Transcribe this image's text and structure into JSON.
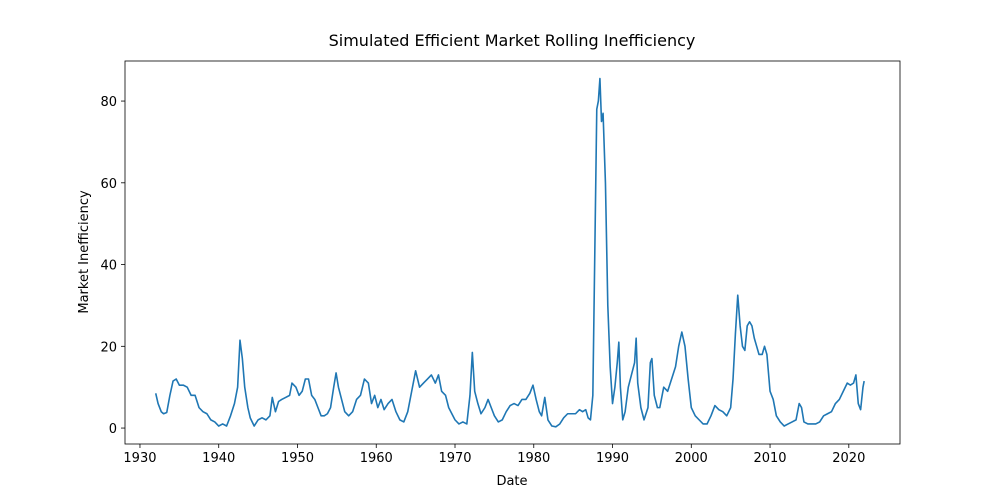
{
  "chart_data": {
    "type": "line",
    "title": "Simulated Efficient Market Rolling Inefficiency",
    "x_label": "Date",
    "y_label": "Market Inefficiency",
    "color": "#1f77b4",
    "x": [
      1932.0,
      1932.3,
      1932.7,
      1933.0,
      1933.4,
      1933.8,
      1934.2,
      1934.6,
      1935.0,
      1935.5,
      1936.0,
      1936.5,
      1937.0,
      1937.5,
      1938.0,
      1938.5,
      1939.0,
      1939.5,
      1940.0,
      1940.5,
      1941.0,
      1941.5,
      1942.0,
      1942.4,
      1942.7,
      1943.0,
      1943.3,
      1943.7,
      1944.0,
      1944.5,
      1945.0,
      1945.5,
      1946.0,
      1946.5,
      1946.8,
      1947.2,
      1947.6,
      1948.0,
      1948.5,
      1949.0,
      1949.3,
      1949.8,
      1950.2,
      1950.6,
      1951.0,
      1951.4,
      1951.8,
      1952.2,
      1952.6,
      1953.0,
      1953.4,
      1953.8,
      1954.2,
      1954.6,
      1954.9,
      1955.2,
      1955.6,
      1956.0,
      1956.5,
      1957.0,
      1957.5,
      1958.0,
      1958.5,
      1959.0,
      1959.4,
      1959.8,
      1960.2,
      1960.6,
      1961.0,
      1961.5,
      1962.0,
      1962.5,
      1963.0,
      1963.5,
      1964.0,
      1964.5,
      1965.0,
      1965.5,
      1966.0,
      1966.5,
      1967.0,
      1967.5,
      1967.9,
      1968.3,
      1968.8,
      1969.2,
      1969.6,
      1970.0,
      1970.5,
      1971.0,
      1971.5,
      1971.9,
      1972.2,
      1972.5,
      1972.9,
      1973.3,
      1973.8,
      1974.2,
      1974.6,
      1975.0,
      1975.5,
      1976.0,
      1976.5,
      1977.0,
      1977.5,
      1978.0,
      1978.5,
      1979.0,
      1979.5,
      1979.9,
      1980.3,
      1980.7,
      1981.0,
      1981.4,
      1981.8,
      1982.3,
      1982.8,
      1983.3,
      1983.8,
      1984.3,
      1984.8,
      1985.3,
      1985.8,
      1986.2,
      1986.6,
      1986.9,
      1987.2,
      1987.5,
      1987.8,
      1988.0,
      1988.2,
      1988.4,
      1988.6,
      1988.8,
      1989.1,
      1989.4,
      1989.7,
      1990.0,
      1990.3,
      1990.6,
      1990.8,
      1991.0,
      1991.3,
      1991.6,
      1992.0,
      1992.4,
      1992.8,
      1993.0,
      1993.2,
      1993.6,
      1994.0,
      1994.5,
      1994.8,
      1995.0,
      1995.3,
      1995.7,
      1996.0,
      1996.5,
      1997.0,
      1997.5,
      1998.0,
      1998.4,
      1998.8,
      1999.2,
      1999.6,
      2000.0,
      2000.5,
      2001.0,
      2001.5,
      2002.0,
      2002.5,
      2003.0,
      2003.5,
      2004.0,
      2004.5,
      2005.0,
      2005.3,
      2005.6,
      2005.9,
      2006.2,
      2006.5,
      2006.8,
      2007.1,
      2007.4,
      2007.7,
      2008.0,
      2008.3,
      2008.6,
      2009.0,
      2009.3,
      2009.6,
      2010.0,
      2010.4,
      2010.8,
      2011.3,
      2011.8,
      2012.3,
      2012.8,
      2013.3,
      2013.7,
      2014.0,
      2014.3,
      2014.8,
      2015.3,
      2015.8,
      2016.3,
      2016.8,
      2017.3,
      2017.8,
      2018.3,
      2018.8,
      2019.3,
      2019.8,
      2020.2,
      2020.6,
      2020.9,
      2021.2,
      2021.5,
      2021.8,
      2021.95
    ],
    "values": [
      8.5,
      6,
      4,
      3.5,
      3.8,
      8,
      11.5,
      12,
      10.5,
      10.5,
      10,
      8,
      8,
      5,
      4,
      3.5,
      2,
      1.5,
      0.5,
      1,
      0.5,
      3,
      6,
      10,
      21.5,
      17,
      10,
      5,
      2.5,
      0.5,
      2,
      2.5,
      2,
      3,
      7.5,
      4,
      6.5,
      7,
      7.5,
      8,
      11,
      10,
      8,
      9,
      12,
      12,
      8,
      7,
      5,
      3,
      3,
      3.5,
      5,
      10,
      13.5,
      10,
      7,
      4,
      3,
      4,
      7,
      8,
      12,
      11,
      6,
      8,
      5,
      7,
      4.5,
      6,
      7,
      4,
      2,
      1.5,
      4,
      9,
      14,
      10,
      11,
      12,
      13,
      11,
      13,
      9,
      8,
      5,
      3.5,
      2,
      1,
      1.5,
      1,
      8,
      18.5,
      9,
      6,
      3.5,
      5,
      7,
      5,
      3,
      1.5,
      2,
      4,
      5.5,
      6,
      5.5,
      7,
      7,
      8.5,
      10.5,
      7,
      4,
      3,
      7.5,
      2,
      0.5,
      0.3,
      1,
      2.5,
      3.5,
      3.5,
      3.5,
      4.5,
      4,
      4.5,
      2.5,
      2,
      8,
      50,
      78,
      80,
      85.5,
      75,
      77,
      60,
      30,
      15,
      6,
      10,
      16,
      21,
      10,
      2,
      4,
      10,
      13,
      16,
      22,
      11,
      5,
      2,
      5,
      16,
      17,
      8,
      5,
      5,
      10,
      9,
      12,
      15,
      20,
      23.5,
      20,
      12,
      5,
      3,
      2,
      1,
      1,
      3,
      5.5,
      4.5,
      4,
      3,
      5,
      12,
      23,
      32.5,
      25,
      20,
      19,
      25,
      26,
      25,
      22,
      20,
      18,
      18,
      20,
      18,
      9,
      7,
      3,
      1.5,
      0.5,
      1,
      1.5,
      2,
      6,
      5,
      1.5,
      1,
      1,
      1,
      1.5,
      3,
      3.5,
      4,
      6,
      7,
      9,
      11,
      10.5,
      11,
      13,
      6,
      4.5,
      10,
      11.5
    ],
    "xlim": [
      1928.1,
      2026.5
    ],
    "xticks": [
      1930,
      1940,
      1950,
      1960,
      1970,
      1980,
      1990,
      2000,
      2010,
      2020
    ],
    "ylim": [
      -3.9,
      89.8
    ],
    "yticks": [
      0,
      20,
      40,
      60,
      80
    ],
    "grid": false
  }
}
